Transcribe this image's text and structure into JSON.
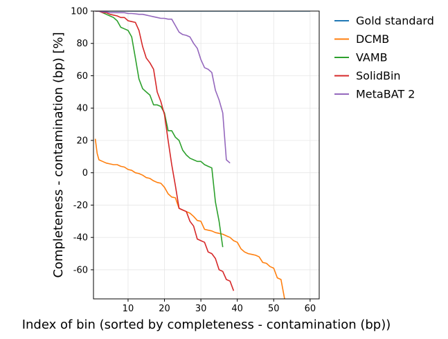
{
  "chart_data": {
    "type": "line",
    "xlabel": "Index of bin (sorted by completeness - contamination (bp))",
    "ylabel": "Completeness - contamination (bp) [%]",
    "xlim": [
      0.5,
      62.5
    ],
    "ylim": [
      -78,
      100
    ],
    "xticks": [
      10,
      20,
      30,
      40,
      50,
      60
    ],
    "yticks": [
      100,
      80,
      60,
      40,
      20,
      0,
      -20,
      -40,
      -60
    ],
    "ytick_labels": [
      "100",
      "80",
      "60",
      "40",
      "20",
      "0",
      "-20",
      "-40",
      "-60"
    ],
    "grid": true,
    "legend_position": "outside-right-top",
    "series": [
      {
        "name": "Gold standard",
        "color": "#1f77b4",
        "x": [
          1,
          60
        ],
        "y": [
          100,
          100
        ]
      },
      {
        "name": "DCMB",
        "color": "#ff7f0e",
        "x": [
          1,
          1.5,
          2,
          3,
          4,
          5,
          6,
          7,
          8,
          9,
          10,
          11,
          12,
          13,
          14,
          15,
          16,
          17,
          18,
          19,
          20,
          21,
          22,
          23,
          24,
          25,
          26,
          27,
          28,
          29,
          30,
          31,
          32,
          33,
          34,
          35,
          36,
          37,
          38,
          39,
          40,
          41,
          42,
          43,
          44,
          45,
          46,
          47,
          48,
          49,
          50,
          51,
          52,
          53
        ],
        "y": [
          21,
          12,
          8,
          7,
          6,
          5.5,
          5,
          5,
          4,
          3.5,
          2,
          1.5,
          0,
          -0.5,
          -1.5,
          -3,
          -3.5,
          -5,
          -6,
          -6.5,
          -9,
          -13,
          -15,
          -15.5,
          -22,
          -23,
          -24,
          -25,
          -27,
          -29.5,
          -30,
          -35,
          -35.5,
          -36,
          -37,
          -37.5,
          -38,
          -39,
          -40,
          -42,
          -43,
          -47,
          -49,
          -50,
          -50.5,
          -51,
          -52,
          -55.5,
          -56,
          -58,
          -59,
          -65,
          -66,
          -78
        ]
      },
      {
        "name": "VAMB",
        "color": "#2ca02c",
        "x": [
          1,
          2,
          3,
          4,
          5,
          6,
          7,
          8,
          9,
          10,
          11,
          12,
          13,
          14,
          15,
          16,
          17,
          18,
          19,
          20,
          21,
          22,
          23,
          24,
          25,
          26,
          27,
          28,
          29,
          30,
          31,
          32,
          33,
          34,
          35,
          36
        ],
        "y": [
          100,
          100,
          99,
          98,
          97,
          96,
          94,
          90,
          89,
          88,
          84,
          71,
          58,
          52,
          50,
          48,
          42,
          42,
          41,
          37,
          26,
          26,
          22,
          20,
          14,
          11,
          9,
          8,
          7,
          7,
          5,
          4,
          3,
          -18,
          -30,
          -46
        ]
      },
      {
        "name": "SolidBin",
        "color": "#d62728",
        "x": [
          1,
          2,
          3,
          4,
          5,
          6,
          7,
          8,
          9,
          10,
          11,
          12,
          13,
          14,
          15,
          16,
          17,
          18,
          19,
          20,
          21,
          22,
          23,
          24,
          25,
          26,
          27,
          28,
          29,
          30,
          31,
          32,
          33,
          34,
          35,
          36,
          37,
          38,
          39
        ],
        "y": [
          100,
          100,
          99,
          99,
          98,
          97.5,
          97,
          96,
          96,
          94,
          93.5,
          93,
          88,
          78,
          71,
          68,
          64,
          50,
          44,
          36,
          20,
          5,
          -8,
          -22,
          -23,
          -24,
          -30,
          -33,
          -41,
          -42,
          -43,
          -49,
          -50,
          -53,
          -60,
          -61,
          -66,
          -67,
          -73
        ]
      },
      {
        "name": "MetaBAT 2",
        "color": "#9467bd",
        "x": [
          1,
          2,
          3,
          4,
          5,
          6,
          7,
          8,
          9,
          10,
          11,
          12,
          13,
          14,
          15,
          16,
          17,
          18,
          19,
          20,
          21,
          22,
          23,
          24,
          25,
          26,
          27,
          28,
          29,
          30,
          31,
          32,
          33,
          34,
          35,
          36,
          37,
          38
        ],
        "y": [
          100,
          100,
          99.5,
          99.5,
          99,
          99,
          99,
          99,
          99,
          98.5,
          98.5,
          98.3,
          98,
          98,
          97.5,
          97,
          96.5,
          96,
          95.5,
          95.5,
          95,
          95,
          91,
          87,
          85.5,
          85,
          84,
          80,
          77,
          70,
          65,
          64,
          62,
          51,
          45,
          37,
          8,
          6
        ]
      }
    ]
  }
}
